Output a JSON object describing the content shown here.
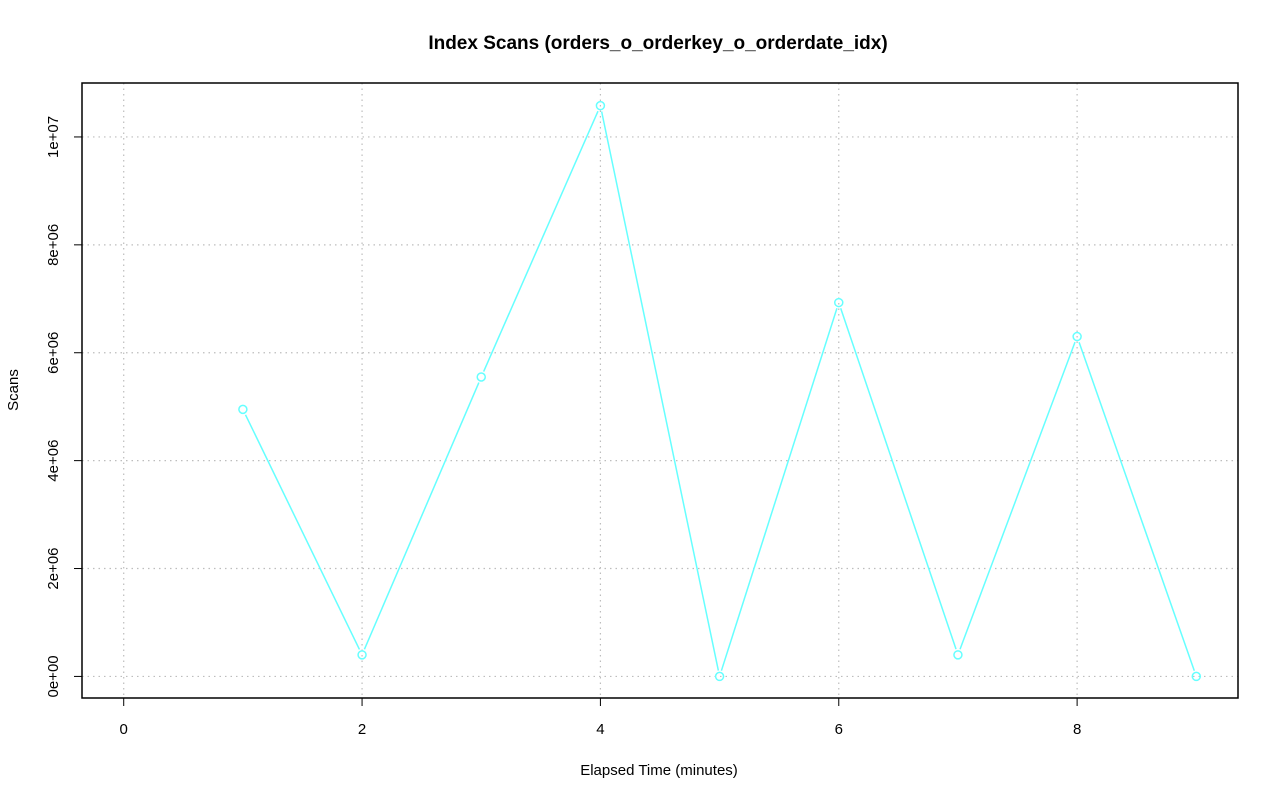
{
  "chart_data": {
    "type": "line",
    "title": "Index Scans (orders_o_orderkey_o_orderdate_idx)",
    "xlabel": "Elapsed Time (minutes)",
    "ylabel": "Scans",
    "xlim": [
      -0.35,
      9.35
    ],
    "ylim": [
      -400000,
      11000000
    ],
    "x_ticks": [
      0,
      2,
      4,
      6,
      8
    ],
    "x_tick_labels": [
      "0",
      "2",
      "4",
      "6",
      "8"
    ],
    "y_ticks": [
      0,
      2000000,
      4000000,
      6000000,
      8000000,
      10000000
    ],
    "y_tick_labels": [
      "0e+00",
      "2e+06",
      "4e+06",
      "6e+06",
      "8e+06",
      "1e+07"
    ],
    "grid": true,
    "series": [
      {
        "color": "#66FFFF",
        "marker": "circle",
        "x": [
          1,
          2,
          3,
          4,
          5,
          6,
          7,
          8,
          9
        ],
        "y": [
          4950000,
          400000,
          5550000,
          10580000,
          0,
          6930000,
          400000,
          6300000,
          0
        ]
      }
    ]
  }
}
